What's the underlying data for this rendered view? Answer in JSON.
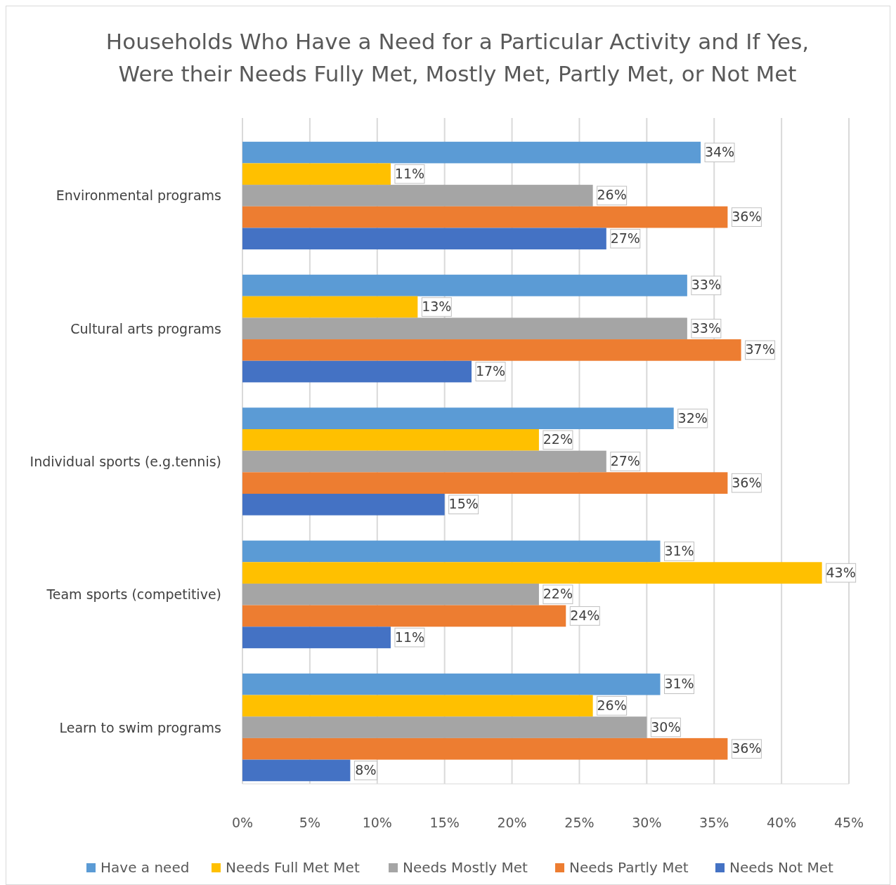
{
  "chart_data": {
    "type": "bar",
    "orientation": "horizontal",
    "title": "Households Who Have a Need for a Particular Activity and If Yes, Were their Needs Fully Met, Mostly Met, Partly Met, or Not Met",
    "categories": [
      "Environmental programs",
      "Cultural arts programs",
      "Individual sports (e.g.tennis)",
      "Team sports (competitive)",
      "Learn to swim programs"
    ],
    "series": [
      {
        "name": "Have a need",
        "color": "#5b9bd5",
        "values": [
          34,
          33,
          32,
          31,
          31
        ],
        "value_labels": [
          "34%",
          "33%",
          "32%",
          "31%",
          "31%"
        ]
      },
      {
        "name": "Needs Full Met Met",
        "color": "#ffc000",
        "values": [
          11,
          13,
          22,
          43,
          26
        ],
        "value_labels": [
          "11%",
          "13%",
          "22%",
          "43%",
          "26%"
        ]
      },
      {
        "name": "Needs Mostly Met",
        "color": "#a5a5a5",
        "values": [
          26,
          33,
          27,
          22,
          30
        ],
        "value_labels": [
          "26%",
          "33%",
          "27%",
          "22%",
          "30%"
        ]
      },
      {
        "name": "Needs Partly Met",
        "color": "#ed7d31",
        "values": [
          36,
          37,
          36,
          24,
          36
        ],
        "value_labels": [
          "36%",
          "37%",
          "36%",
          "24%",
          "36%"
        ]
      },
      {
        "name": "Needs Not Met",
        "color": "#4472c4",
        "values": [
          27,
          17,
          15,
          11,
          8
        ],
        "value_labels": [
          "27%",
          "17%",
          "15%",
          "11%",
          "8%"
        ]
      }
    ],
    "xlim": [
      0,
      45
    ],
    "xticks": [
      {
        "value": 0,
        "label": "0%"
      },
      {
        "value": 5,
        "label": "5%"
      },
      {
        "value": 10,
        "label": "10%"
      },
      {
        "value": 15,
        "label": "15%"
      },
      {
        "value": 20,
        "label": "20%"
      },
      {
        "value": 25,
        "label": "25%"
      },
      {
        "value": 30,
        "label": "30%"
      },
      {
        "value": 35,
        "label": "35%"
      },
      {
        "value": 40,
        "label": "40%"
      },
      {
        "value": 45,
        "label": "45%"
      }
    ],
    "grid": "x",
    "legend": "bottom"
  }
}
